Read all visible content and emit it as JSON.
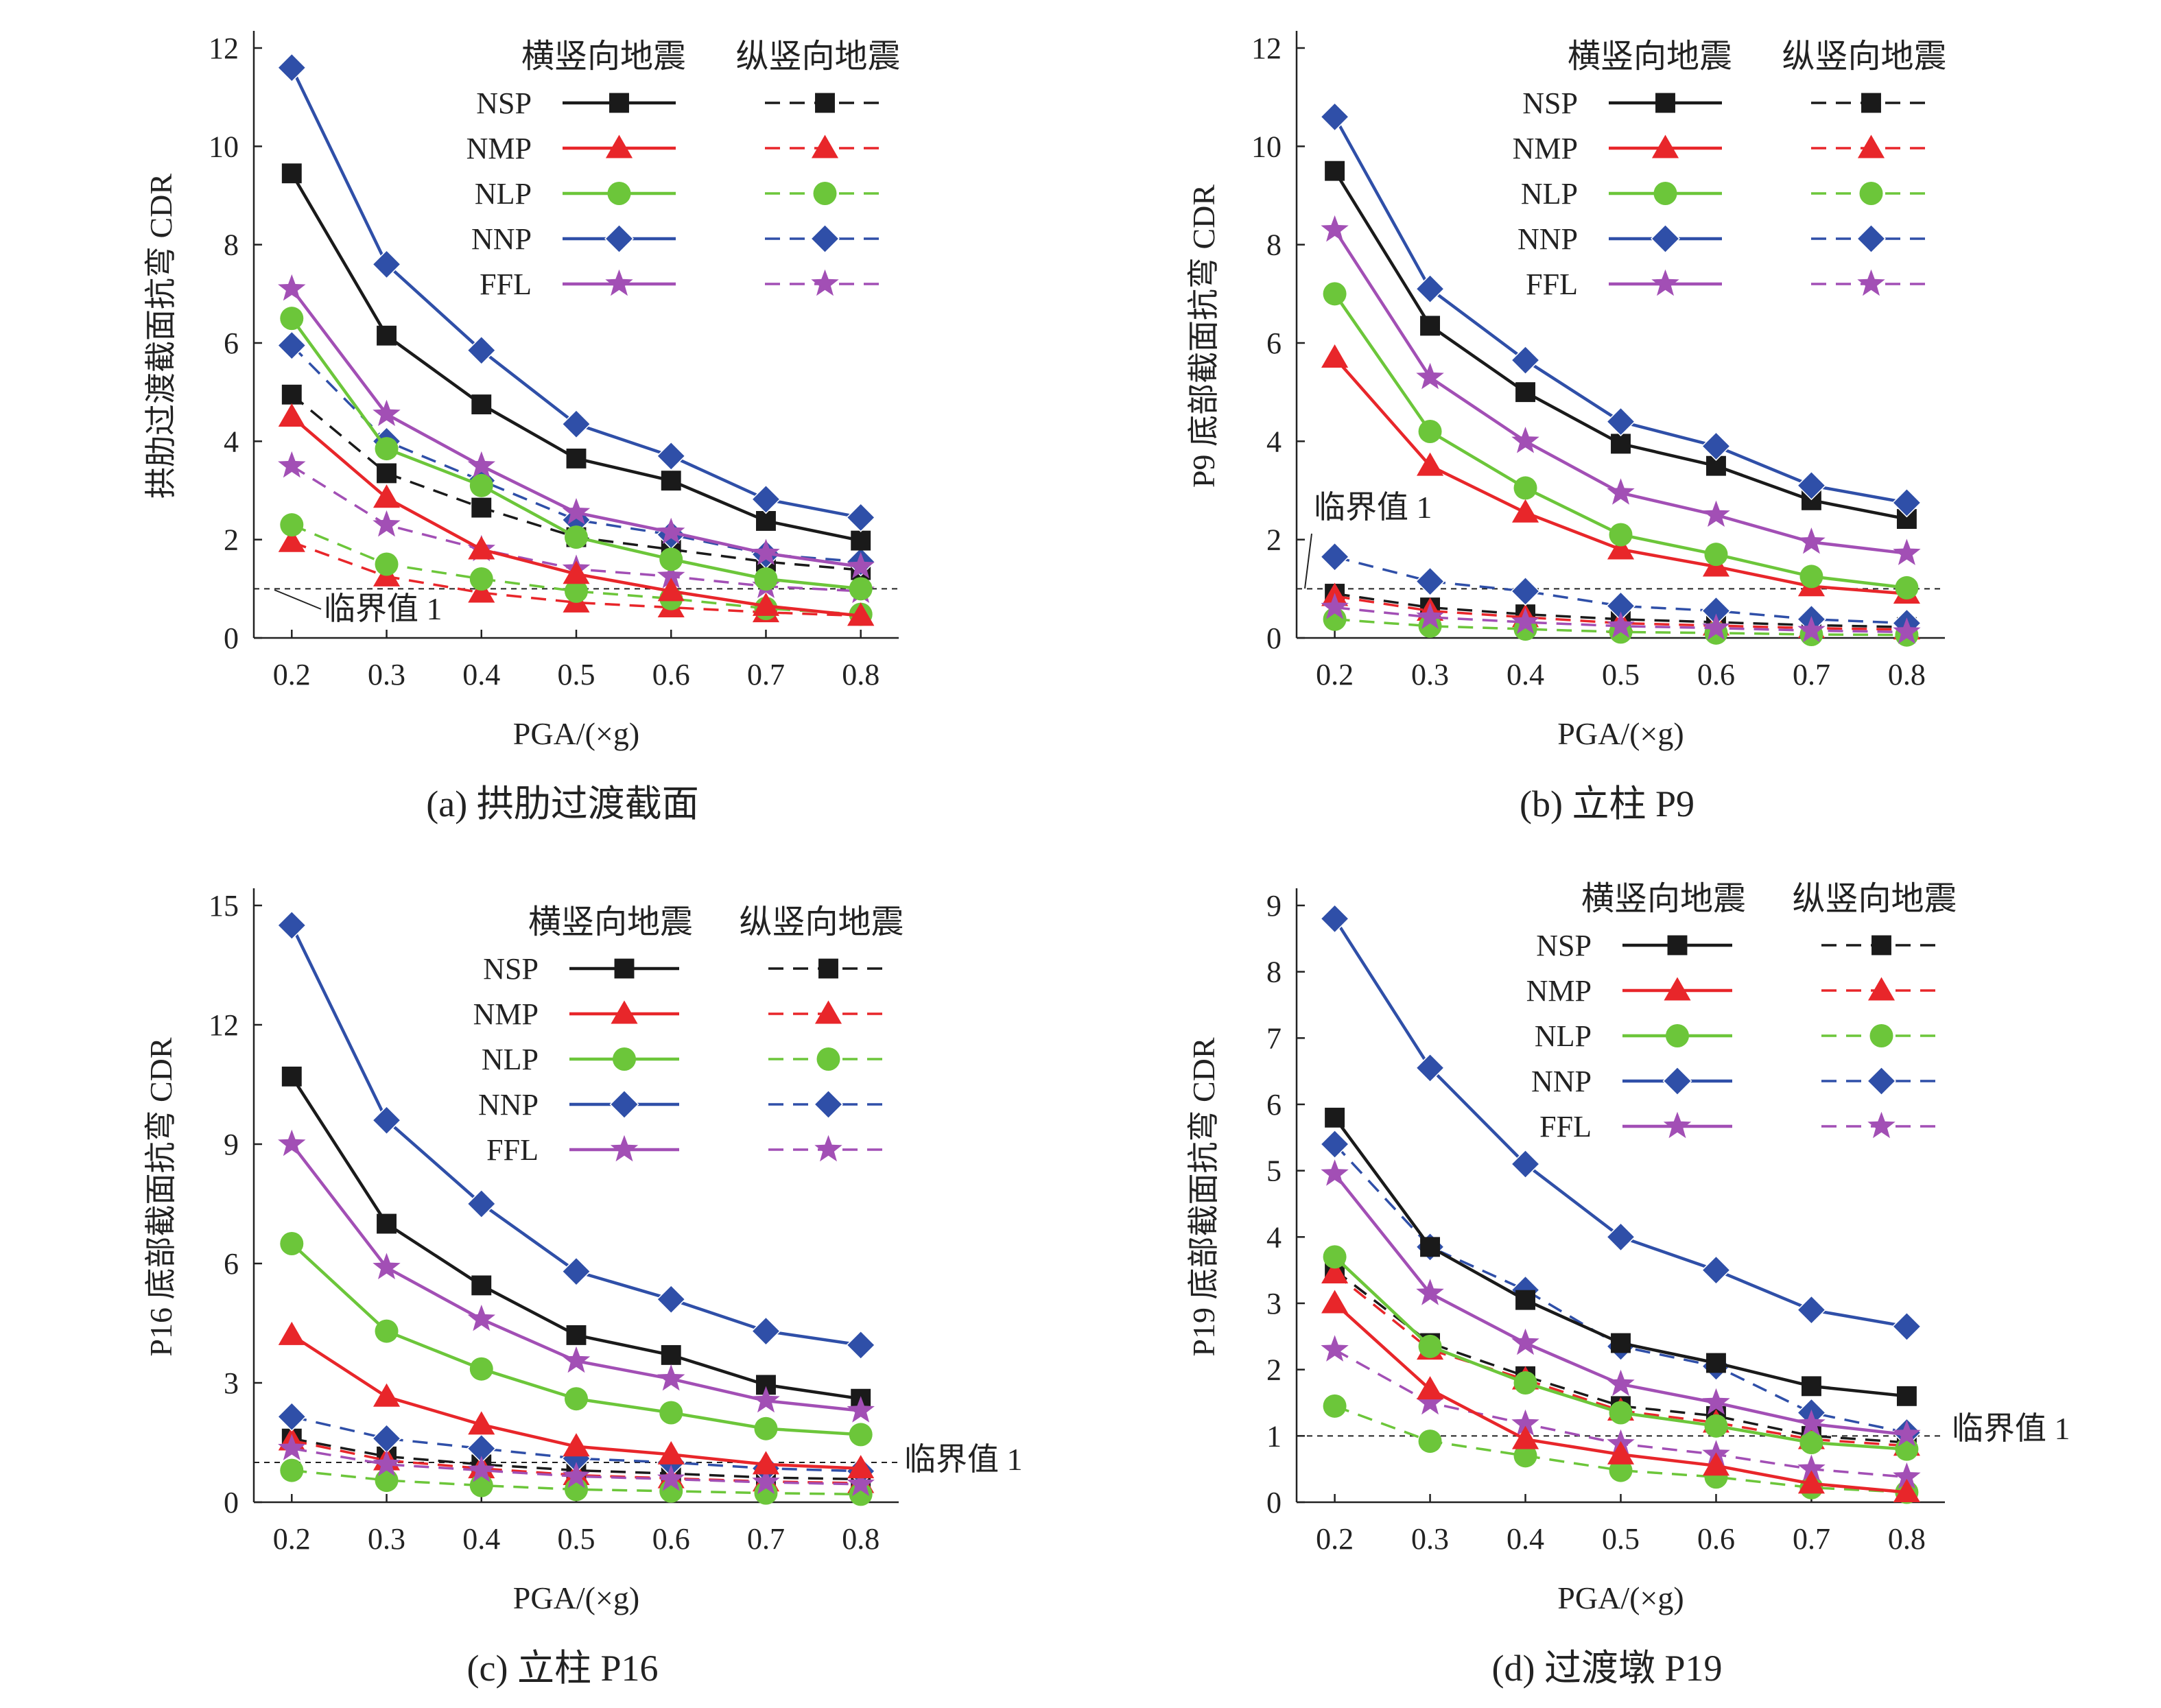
{
  "legend": {
    "group_transverse": "横竖向地震",
    "group_longitudinal": "纵竖向地震",
    "series_names": [
      "NSP",
      "NMP",
      "NLP",
      "NNP",
      "FFL"
    ]
  },
  "series_styles": [
    {
      "color": "#1a1a1a",
      "marker": "square"
    },
    {
      "color": "#e8262a",
      "marker": "triangle"
    },
    {
      "color": "#6cc63a",
      "marker": "circle"
    },
    {
      "color": "#2f4fa8",
      "marker": "diamond"
    },
    {
      "color": "#a24fb5",
      "marker": "star"
    }
  ],
  "threshold_label": "临界值 1",
  "chart_data": [
    {
      "type": "line",
      "caption": "(a) 拱肋过渡截面",
      "xlabel": "PGA/(×g)",
      "ylabel": "拱肋过渡截面抗弯 CDR",
      "x": [
        0.2,
        0.3,
        0.4,
        0.5,
        0.6,
        0.7,
        0.8
      ],
      "ylim": [
        0,
        12
      ],
      "yticks": [
        0,
        2,
        4,
        6,
        8,
        10,
        12
      ],
      "threshold": 1,
      "series": [
        {
          "name": "NSP",
          "direction": "横竖向地震",
          "values": [
            9.45,
            6.15,
            4.75,
            3.65,
            3.2,
            2.38,
            1.98
          ]
        },
        {
          "name": "NMP",
          "direction": "横竖向地震",
          "values": [
            4.5,
            2.85,
            1.8,
            1.3,
            0.95,
            0.65,
            0.45
          ]
        },
        {
          "name": "NLP",
          "direction": "横竖向地震",
          "values": [
            6.5,
            3.85,
            3.1,
            2.05,
            1.6,
            1.2,
            1.0
          ]
        },
        {
          "name": "NNP",
          "direction": "横竖向地震",
          "values": [
            11.6,
            7.6,
            5.85,
            4.35,
            3.7,
            2.82,
            2.45
          ]
        },
        {
          "name": "FFL",
          "direction": "横竖向地震",
          "values": [
            7.1,
            4.55,
            3.5,
            2.55,
            2.15,
            1.72,
            1.45
          ]
        },
        {
          "name": "NSP",
          "direction": "纵竖向地震",
          "values": [
            4.95,
            3.35,
            2.65,
            2.05,
            1.8,
            1.55,
            1.38
          ]
        },
        {
          "name": "NMP",
          "direction": "纵竖向地震",
          "values": [
            1.95,
            1.25,
            0.92,
            0.72,
            0.62,
            0.52,
            0.45
          ]
        },
        {
          "name": "NLP",
          "direction": "纵竖向地震",
          "values": [
            2.3,
            1.5,
            1.2,
            0.95,
            0.8,
            0.6,
            0.48
          ]
        },
        {
          "name": "NNP",
          "direction": "纵竖向地震",
          "values": [
            5.95,
            4.0,
            3.2,
            2.4,
            2.1,
            1.7,
            1.55
          ]
        },
        {
          "name": "FFL",
          "direction": "纵竖向地震",
          "values": [
            3.5,
            2.3,
            1.8,
            1.4,
            1.25,
            1.05,
            0.95
          ]
        }
      ]
    },
    {
      "type": "line",
      "caption": "(b) 立柱 P9",
      "xlabel": "PGA/(×g)",
      "ylabel": "P9 底部截面抗弯 CDR",
      "x": [
        0.2,
        0.3,
        0.4,
        0.5,
        0.6,
        0.7,
        0.8
      ],
      "ylim": [
        0,
        12
      ],
      "yticks": [
        0,
        2,
        4,
        6,
        8,
        10,
        12
      ],
      "threshold": 1,
      "series": [
        {
          "name": "NSP",
          "direction": "横竖向地震",
          "values": [
            9.5,
            6.35,
            5.0,
            3.95,
            3.5,
            2.8,
            2.42
          ]
        },
        {
          "name": "NMP",
          "direction": "横竖向地震",
          "values": [
            5.7,
            3.5,
            2.55,
            1.8,
            1.45,
            1.05,
            0.9
          ]
        },
        {
          "name": "NLP",
          "direction": "横竖向地震",
          "values": [
            7.0,
            4.2,
            3.05,
            2.1,
            1.7,
            1.25,
            1.02
          ]
        },
        {
          "name": "NNP",
          "direction": "横竖向地震",
          "values": [
            10.6,
            7.1,
            5.65,
            4.4,
            3.9,
            3.1,
            2.75
          ]
        },
        {
          "name": "FFL",
          "direction": "横竖向地震",
          "values": [
            8.3,
            5.3,
            4.0,
            2.95,
            2.5,
            1.95,
            1.72
          ]
        },
        {
          "name": "NSP",
          "direction": "纵竖向地震",
          "values": [
            0.9,
            0.62,
            0.48,
            0.38,
            0.32,
            0.26,
            0.22
          ]
        },
        {
          "name": "NMP",
          "direction": "纵竖向地震",
          "values": [
            0.85,
            0.55,
            0.42,
            0.3,
            0.25,
            0.2,
            0.17
          ]
        },
        {
          "name": "NLP",
          "direction": "纵竖向地震",
          "values": [
            0.38,
            0.24,
            0.18,
            0.12,
            0.1,
            0.07,
            0.06
          ]
        },
        {
          "name": "NNP",
          "direction": "纵竖向地震",
          "values": [
            1.65,
            1.15,
            0.95,
            0.65,
            0.55,
            0.38,
            0.3
          ]
        },
        {
          "name": "FFL",
          "direction": "纵竖向地震",
          "values": [
            0.62,
            0.42,
            0.32,
            0.24,
            0.2,
            0.15,
            0.12
          ]
        }
      ]
    },
    {
      "type": "line",
      "caption": "(c) 立柱 P16",
      "xlabel": "PGA/(×g)",
      "ylabel": "P16 底部截面抗弯 CDR",
      "x": [
        0.2,
        0.3,
        0.4,
        0.5,
        0.6,
        0.7,
        0.8
      ],
      "ylim": [
        0,
        15
      ],
      "yticks": [
        0,
        3,
        6,
        9,
        12,
        15
      ],
      "threshold": 1,
      "series": [
        {
          "name": "NSP",
          "direction": "横竖向地震",
          "values": [
            10.7,
            7.0,
            5.45,
            4.2,
            3.7,
            2.95,
            2.6
          ]
        },
        {
          "name": "NMP",
          "direction": "横竖向地震",
          "values": [
            4.2,
            2.65,
            1.95,
            1.4,
            1.2,
            0.95,
            0.85
          ]
        },
        {
          "name": "NLP",
          "direction": "横竖向地震",
          "values": [
            6.5,
            4.3,
            3.35,
            2.6,
            2.25,
            1.85,
            1.7
          ]
        },
        {
          "name": "NNP",
          "direction": "横竖向地震",
          "values": [
            14.5,
            9.6,
            7.5,
            5.8,
            5.1,
            4.3,
            3.95
          ]
        },
        {
          "name": "FFL",
          "direction": "横竖向地震",
          "values": [
            9.0,
            5.9,
            4.6,
            3.55,
            3.1,
            2.55,
            2.3
          ]
        },
        {
          "name": "NSP",
          "direction": "纵竖向地震",
          "values": [
            1.6,
            1.15,
            0.95,
            0.8,
            0.72,
            0.62,
            0.58
          ]
        },
        {
          "name": "NMP",
          "direction": "纵竖向地震",
          "values": [
            1.55,
            1.05,
            0.85,
            0.68,
            0.6,
            0.52,
            0.48
          ]
        },
        {
          "name": "NLP",
          "direction": "纵竖向地震",
          "values": [
            0.8,
            0.55,
            0.42,
            0.32,
            0.28,
            0.23,
            0.2
          ]
        },
        {
          "name": "NNP",
          "direction": "纵竖向地震",
          "values": [
            2.15,
            1.6,
            1.35,
            1.1,
            1.0,
            0.85,
            0.78
          ]
        },
        {
          "name": "FFL",
          "direction": "纵竖向地震",
          "values": [
            1.35,
            0.95,
            0.8,
            0.65,
            0.58,
            0.5,
            0.45
          ]
        }
      ]
    },
    {
      "type": "line",
      "caption": "(d) 过渡墩 P19",
      "xlabel": "PGA/(×g)",
      "ylabel": "P19 底部截面抗弯 CDR",
      "x": [
        0.2,
        0.3,
        0.4,
        0.5,
        0.6,
        0.7,
        0.8
      ],
      "ylim": [
        0,
        9
      ],
      "yticks": [
        0,
        1,
        2,
        3,
        4,
        5,
        6,
        7,
        8,
        9
      ],
      "threshold": 1,
      "series": [
        {
          "name": "NSP",
          "direction": "横竖向地震",
          "values": [
            5.8,
            3.85,
            3.05,
            2.4,
            2.1,
            1.75,
            1.6
          ]
        },
        {
          "name": "NMP",
          "direction": "横竖向地震",
          "values": [
            3.0,
            1.7,
            0.95,
            0.72,
            0.55,
            0.28,
            0.15
          ]
        },
        {
          "name": "NLP",
          "direction": "横竖向地震",
          "values": [
            3.7,
            2.35,
            1.8,
            1.35,
            1.15,
            0.9,
            0.8
          ]
        },
        {
          "name": "NNP",
          "direction": "横竖向地震",
          "values": [
            8.8,
            6.55,
            5.1,
            4.0,
            3.5,
            2.9,
            2.65
          ]
        },
        {
          "name": "FFL",
          "direction": "横竖向地震",
          "values": [
            4.95,
            3.15,
            2.4,
            1.78,
            1.5,
            1.18,
            1.02
          ]
        },
        {
          "name": "NSP",
          "direction": "纵竖向地震",
          "values": [
            3.5,
            2.4,
            1.9,
            1.45,
            1.3,
            1.0,
            0.9
          ]
        },
        {
          "name": "NMP",
          "direction": "纵竖向地震",
          "values": [
            3.45,
            2.3,
            1.85,
            1.38,
            1.2,
            0.95,
            0.85
          ]
        },
        {
          "name": "NLP",
          "direction": "纵竖向地震",
          "values": [
            1.45,
            0.92,
            0.7,
            0.48,
            0.38,
            0.22,
            0.15
          ]
        },
        {
          "name": "NNP",
          "direction": "纵竖向地震",
          "values": [
            5.4,
            3.85,
            3.2,
            2.35,
            2.05,
            1.35,
            1.05
          ]
        },
        {
          "name": "FFL",
          "direction": "纵竖向地震",
          "values": [
            2.3,
            1.5,
            1.18,
            0.88,
            0.72,
            0.5,
            0.38
          ]
        }
      ]
    }
  ]
}
